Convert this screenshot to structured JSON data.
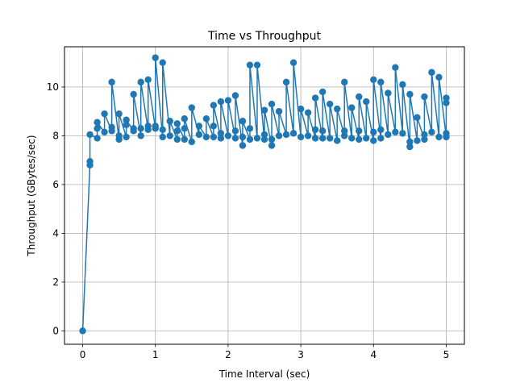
{
  "chart_data": {
    "type": "line",
    "title": "Time vs Throughput",
    "xlabel": "Time Interval (sec)",
    "ylabel": "Throughput (GBytes/sec)",
    "xlim": [
      -0.25,
      5.25
    ],
    "ylim": [
      -0.55,
      11.65
    ],
    "xticks": [
      0,
      1,
      2,
      3,
      4,
      5
    ],
    "yticks": [
      0,
      2,
      4,
      6,
      8,
      10
    ],
    "grid": true,
    "marker": "circle",
    "series_color": "#1f77b4",
    "x": [
      0.0,
      0.1,
      0.1,
      0.1,
      0.2,
      0.2,
      0.2,
      0.3,
      0.3,
      0.4,
      0.4,
      0.4,
      0.5,
      0.5,
      0.5,
      0.6,
      0.6,
      0.6,
      0.7,
      0.7,
      0.7,
      0.8,
      0.8,
      0.8,
      0.9,
      0.9,
      0.9,
      1.0,
      1.0,
      1.0,
      1.1,
      1.1,
      1.1,
      1.2,
      1.2,
      1.3,
      1.3,
      1.3,
      1.4,
      1.4,
      1.4,
      1.5,
      1.5,
      1.6,
      1.6,
      1.7,
      1.7,
      1.8,
      1.8,
      1.8,
      1.9,
      1.9,
      1.9,
      2.0,
      2.0,
      2.1,
      2.1,
      2.1,
      2.2,
      2.2,
      2.2,
      2.3,
      2.3,
      2.3,
      2.4,
      2.4,
      2.5,
      2.5,
      2.5,
      2.6,
      2.6,
      2.6,
      2.7,
      2.7,
      2.8,
      2.8,
      2.9,
      2.9,
      3.0,
      3.0,
      3.1,
      3.1,
      3.2,
      3.2,
      3.2,
      3.3,
      3.3,
      3.3,
      3.4,
      3.4,
      3.5,
      3.5,
      3.6,
      3.6,
      3.6,
      3.7,
      3.7,
      3.8,
      3.8,
      3.8,
      3.9,
      3.9,
      4.0,
      4.0,
      4.0,
      4.1,
      4.1,
      4.1,
      4.2,
      4.2,
      4.3,
      4.3,
      4.4,
      4.4,
      4.5,
      4.5,
      4.5,
      4.6,
      4.6,
      4.7,
      4.7,
      4.7,
      4.8,
      4.8,
      4.9,
      4.9,
      5.0,
      5.0,
      5.0,
      5.0
    ],
    "y": [
      0.0,
      6.8,
      6.95,
      8.05,
      7.9,
      8.3,
      8.55,
      8.15,
      8.9,
      8.2,
      8.35,
      10.2,
      7.85,
      8.0,
      8.9,
      7.95,
      8.45,
      8.65,
      8.2,
      8.3,
      9.7,
      8.0,
      8.3,
      10.2,
      8.25,
      8.4,
      10.3,
      8.3,
      8.4,
      11.2,
      7.95,
      8.25,
      11.0,
      8.0,
      8.6,
      7.85,
      8.2,
      8.5,
      7.85,
      8.3,
      8.7,
      7.75,
      9.15,
      8.05,
      8.4,
      7.95,
      8.7,
      7.95,
      8.4,
      9.25,
      7.9,
      8.1,
      9.4,
      8.0,
      9.45,
      7.9,
      8.2,
      9.65,
      7.6,
      7.95,
      8.6,
      7.85,
      8.3,
      10.9,
      7.9,
      10.9,
      7.85,
      8.05,
      9.05,
      7.6,
      7.85,
      9.3,
      8.0,
      9.0,
      8.05,
      10.2,
      8.1,
      11.0,
      7.95,
      9.1,
      8.0,
      8.95,
      7.9,
      8.25,
      9.55,
      7.9,
      8.2,
      9.8,
      7.9,
      9.3,
      7.8,
      9.1,
      8.0,
      8.2,
      10.2,
      7.9,
      9.15,
      7.85,
      8.2,
      9.6,
      7.9,
      9.4,
      7.8,
      8.15,
      10.3,
      7.9,
      8.25,
      10.2,
      8.05,
      9.75,
      8.15,
      10.8,
      8.1,
      10.1,
      7.55,
      7.75,
      9.7,
      7.8,
      8.75,
      7.85,
      8.05,
      9.6,
      8.15,
      10.6,
      7.95,
      10.4,
      7.95,
      8.1,
      9.35,
      9.55
    ]
  }
}
